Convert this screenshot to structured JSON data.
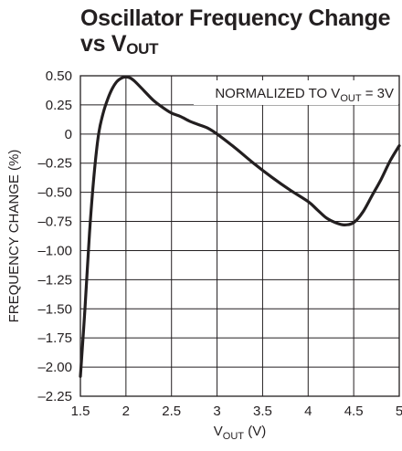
{
  "chart_data": {
    "type": "line",
    "title_line1": "Oscillator Frequency Change",
    "title_line2_pre": "vs V",
    "title_line2_sub": "OUT",
    "xlabel_pre": "V",
    "xlabel_sub": "OUT",
    "xlabel_post": " (V)",
    "ylabel": "FREQUENCY CHANGE (%)",
    "annotation_pre": "NORMALIZED TO V",
    "annotation_sub": "OUT",
    "annotation_post": " = 3V",
    "xlim": [
      1.5,
      5
    ],
    "ylim": [
      -2.25,
      0.5
    ],
    "x_ticks": [
      1.5,
      2,
      2.5,
      3,
      3.5,
      4,
      4.5,
      5
    ],
    "x_tick_labels": [
      "1.5",
      "2",
      "2.5",
      "3",
      "3.5",
      "4",
      "4.5",
      "5"
    ],
    "y_ticks": [
      0.5,
      0.25,
      0,
      -0.25,
      -0.5,
      -0.75,
      -1.0,
      -1.25,
      -1.5,
      -1.75,
      -2.0,
      -2.25
    ],
    "y_tick_labels": [
      "0.50",
      "0.25",
      "0",
      "–0.25",
      "–0.50",
      "–0.75",
      "–1.00",
      "–1.25",
      "–1.50",
      "–1.75",
      "–2.00",
      "–2.25"
    ],
    "grid": true,
    "series": [
      {
        "x": [
          1.5,
          1.55,
          1.6,
          1.65,
          1.7,
          1.75,
          1.8,
          1.85,
          1.9,
          1.95,
          2.0,
          2.05,
          2.1,
          2.2,
          2.3,
          2.4,
          2.5,
          2.6,
          2.7,
          2.8,
          2.9,
          3.0,
          3.2,
          3.4,
          3.6,
          3.8,
          4.0,
          4.1,
          4.2,
          4.3,
          4.4,
          4.5,
          4.6,
          4.7,
          4.8,
          4.9,
          5.0
        ],
        "y": [
          -2.08,
          -1.5,
          -0.85,
          -0.35,
          0.0,
          0.18,
          0.3,
          0.39,
          0.45,
          0.48,
          0.49,
          0.48,
          0.45,
          0.37,
          0.29,
          0.23,
          0.18,
          0.15,
          0.11,
          0.08,
          0.05,
          0.0,
          -0.12,
          -0.25,
          -0.37,
          -0.48,
          -0.58,
          -0.65,
          -0.72,
          -0.76,
          -0.78,
          -0.76,
          -0.67,
          -0.53,
          -0.39,
          -0.23,
          -0.1
        ]
      }
    ]
  }
}
